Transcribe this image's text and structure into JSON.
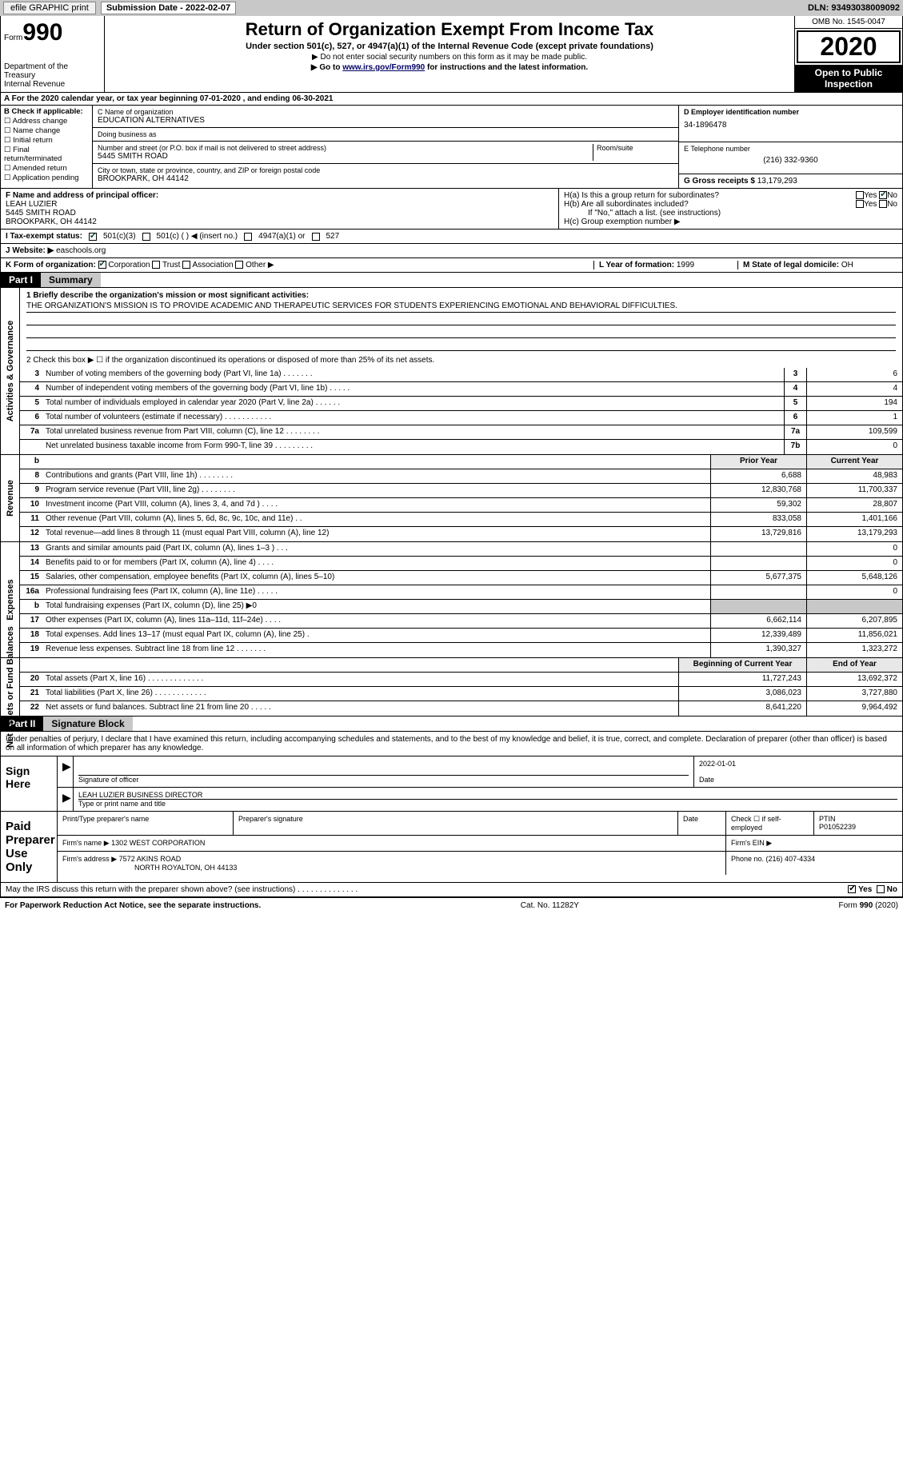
{
  "topbar": {
    "efile": "efile GRAPHIC print",
    "sub_label": "Submission Date - ",
    "sub_date": "2022-02-07",
    "dln": "DLN: 93493038009092"
  },
  "header": {
    "form_word": "Form",
    "form_num": "990",
    "dept": "Department of the Treasury\nInternal Revenue",
    "title": "Return of Organization Exempt From Income Tax",
    "sub": "Under section 501(c), 527, or 4947(a)(1) of the Internal Revenue Code (except private foundations)",
    "note1": "▶ Do not enter social security numbers on this form as it may be made public.",
    "note2_pre": "▶ Go to ",
    "note2_link": "www.irs.gov/Form990",
    "note2_post": " for instructions and the latest information.",
    "omb": "OMB No. 1545-0047",
    "year": "2020",
    "inspection": "Open to Public Inspection"
  },
  "line_a": "A  For the 2020 calendar year, or tax year beginning 07-01-2020    , and ending 06-30-2021",
  "col_b": {
    "header": "B Check if applicable:",
    "opts": [
      "Address change",
      "Name change",
      "Initial return",
      "Final return/terminated",
      "Amended return",
      "Application pending"
    ]
  },
  "col_c": {
    "name_label": "C Name of organization",
    "name": "EDUCATION ALTERNATIVES",
    "dba_label": "Doing business as",
    "dba": "",
    "addr_label": "Number and street (or P.O. box if mail is not delivered to street address)",
    "room_label": "Room/suite",
    "addr": "5445 SMITH ROAD",
    "city_label": "City or town, state or province, country, and ZIP or foreign postal code",
    "city": "BROOKPARK, OH  44142"
  },
  "col_d": {
    "ein_label": "D Employer identification number",
    "ein": "34-1896478",
    "tel_label": "E Telephone number",
    "tel": "(216) 332-9360",
    "gross_label": "G Gross receipts $ ",
    "gross": "13,179,293"
  },
  "col_f": {
    "label": "F  Name and address of principal officer:",
    "name": "LEAH LUZIER",
    "addr1": "5445 SMITH ROAD",
    "addr2": "BROOKPARK, OH  44142"
  },
  "col_h": {
    "ha": "H(a)  Is this a group return for subordinates?",
    "hb": "H(b)  Are all subordinates included?",
    "hb_note": "If \"No,\" attach a list. (see instructions)",
    "hc": "H(c)  Group exemption number ▶",
    "yes": "Yes",
    "no": "No"
  },
  "tax_status": {
    "label_i": "I  Tax-exempt status:",
    "opt1": "501(c)(3)",
    "opt2": "501(c) (  ) ◀ (insert no.)",
    "opt3": "4947(a)(1) or",
    "opt4": "527",
    "label_j": "J  Website: ▶",
    "website": "easchools.org"
  },
  "line_k": {
    "label": "K Form of organization:",
    "opts": [
      "Corporation",
      "Trust",
      "Association",
      "Other ▶"
    ],
    "l_label": "L Year of formation: ",
    "l_val": "1999",
    "m_label": "M State of legal domicile: ",
    "m_val": "OH"
  },
  "part1": {
    "num": "Part I",
    "title": "Summary",
    "q1_label": "1  Briefly describe the organization's mission or most significant activities:",
    "q1_text": "THE ORGANIZATION'S MISSION IS TO PROVIDE ACADEMIC AND THERAPEUTIC SERVICES FOR STUDENTS EXPERIENCING EMOTIONAL AND BEHAVIORAL DIFFICULTIES.",
    "q2": "2   Check this box ▶ ☐  if the organization discontinued its operations or disposed of more than 25% of its net assets.",
    "side_gov": "Activities & Governance",
    "side_rev": "Revenue",
    "side_exp": "Expenses",
    "side_net": "Net Assets or Fund Balances",
    "hdr_prior": "Prior Year",
    "hdr_current": "Current Year",
    "hdr_begin": "Beginning of Current Year",
    "hdr_end": "End of Year",
    "gov_rows": [
      {
        "n": "3",
        "d": "Number of voting members of the governing body (Part VI, line 1a)   .    .    .    .    .    .    .",
        "b": "3",
        "v": "6"
      },
      {
        "n": "4",
        "d": "Number of independent voting members of the governing body (Part VI, line 1b)   .    .    .    .    .",
        "b": "4",
        "v": "4"
      },
      {
        "n": "5",
        "d": "Total number of individuals employed in calendar year 2020 (Part V, line 2a)   .    .    .    .    .    .",
        "b": "5",
        "v": "194"
      },
      {
        "n": "6",
        "d": "Total number of volunteers (estimate if necessary)   .    .    .    .    .    .    .    .    .    .    .",
        "b": "6",
        "v": "1"
      },
      {
        "n": "7a",
        "d": "Total unrelated business revenue from Part VIII, column (C), line 12   .    .    .    .    .    .    .    .",
        "b": "7a",
        "v": "109,599"
      },
      {
        "n": "",
        "d": "Net unrelated business taxable income from Form 990-T, line 39   .    .    .    .    .    .    .    .    .",
        "b": "7b",
        "v": "0"
      }
    ],
    "rev_rows": [
      {
        "n": "8",
        "d": "Contributions and grants (Part VIII, line 1h)   .    .    .    .    .    .    .    .",
        "p": "6,688",
        "c": "48,983"
      },
      {
        "n": "9",
        "d": "Program service revenue (Part VIII, line 2g)   .    .    .    .    .    .    .    .",
        "p": "12,830,768",
        "c": "11,700,337"
      },
      {
        "n": "10",
        "d": "Investment income (Part VIII, column (A), lines 3, 4, and 7d )   .    .    .    .",
        "p": "59,302",
        "c": "28,807"
      },
      {
        "n": "11",
        "d": "Other revenue (Part VIII, column (A), lines 5, 6d, 8c, 9c, 10c, and 11e)   .    .",
        "p": "833,058",
        "c": "1,401,166"
      },
      {
        "n": "12",
        "d": "Total revenue—add lines 8 through 11 (must equal Part VIII, column (A), line 12)",
        "p": "13,729,816",
        "c": "13,179,293"
      }
    ],
    "exp_rows": [
      {
        "n": "13",
        "d": "Grants and similar amounts paid (Part IX, column (A), lines 1–3 )   .    .    .",
        "p": "",
        "c": "0"
      },
      {
        "n": "14",
        "d": "Benefits paid to or for members (Part IX, column (A), line 4)   .    .    .    .",
        "p": "",
        "c": "0"
      },
      {
        "n": "15",
        "d": "Salaries, other compensation, employee benefits (Part IX, column (A), lines 5–10)",
        "p": "5,677,375",
        "c": "5,648,126"
      },
      {
        "n": "16a",
        "d": "Professional fundraising fees (Part IX, column (A), line 11e)   .    .    .    .    .",
        "p": "",
        "c": "0"
      },
      {
        "n": "b",
        "d": "Total fundraising expenses (Part IX, column (D), line 25) ▶0",
        "p": "shade",
        "c": "shade"
      },
      {
        "n": "17",
        "d": "Other expenses (Part IX, column (A), lines 11a–11d, 11f–24e)   .    .    .    .",
        "p": "6,662,114",
        "c": "6,207,895"
      },
      {
        "n": "18",
        "d": "Total expenses. Add lines 13–17 (must equal Part IX, column (A), line 25)   .",
        "p": "12,339,489",
        "c": "11,856,021"
      },
      {
        "n": "19",
        "d": "Revenue less expenses. Subtract line 18 from line 12   .    .    .    .    .    .    .",
        "p": "1,390,327",
        "c": "1,323,272"
      }
    ],
    "net_rows": [
      {
        "n": "20",
        "d": "Total assets (Part X, line 16)   .    .    .    .    .    .    .    .    .    .    .    .    .",
        "p": "11,727,243",
        "c": "13,692,372"
      },
      {
        "n": "21",
        "d": "Total liabilities (Part X, line 26)   .    .    .    .    .    .    .    .    .    .    .    .",
        "p": "3,086,023",
        "c": "3,727,880"
      },
      {
        "n": "22",
        "d": "Net assets or fund balances. Subtract line 21 from line 20   .    .    .    .    .",
        "p": "8,641,220",
        "c": "9,964,492"
      }
    ]
  },
  "part2": {
    "num": "Part II",
    "title": "Signature Block",
    "decl": "Under penalties of perjury, I declare that I have examined this return, including accompanying schedules and statements, and to the best of my knowledge and belief, it is true, correct, and complete. Declaration of preparer (other than officer) is based on all information of which preparer has any knowledge."
  },
  "sign": {
    "left": "Sign Here",
    "sig_label": "Signature of officer",
    "date_label": "Date",
    "date": "2022-01-01",
    "name": "LEAH LUZIER  BUSINESS DIRECTOR",
    "name_label": "Type or print name and title"
  },
  "paid": {
    "left": "Paid Preparer Use Only",
    "print_label": "Print/Type preparer's name",
    "sig_label": "Preparer's signature",
    "date_label": "Date",
    "check_label": "Check ☐ if self-employed",
    "ptin_label": "PTIN",
    "ptin": "P01052239",
    "firm_name_label": "Firm's name    ▶",
    "firm_name": "1302 WEST CORPORATION",
    "firm_ein_label": "Firm's EIN ▶",
    "firm_addr_label": "Firm's address ▶",
    "firm_addr1": "7572 AKINS ROAD",
    "firm_addr2": "NORTH ROYALTON, OH  44133",
    "phone_label": "Phone no. ",
    "phone": "(216) 407-4334"
  },
  "discuss": {
    "q": "May the IRS discuss this return with the preparer shown above? (see instructions)   .    .    .    .    .    .    .    .    .    .    .    .    .    .",
    "yes": "Yes",
    "no": "No"
  },
  "footer": {
    "left": "For Paperwork Reduction Act Notice, see the separate instructions.",
    "mid": "Cat. No. 11282Y",
    "right": "Form 990 (2020)"
  }
}
